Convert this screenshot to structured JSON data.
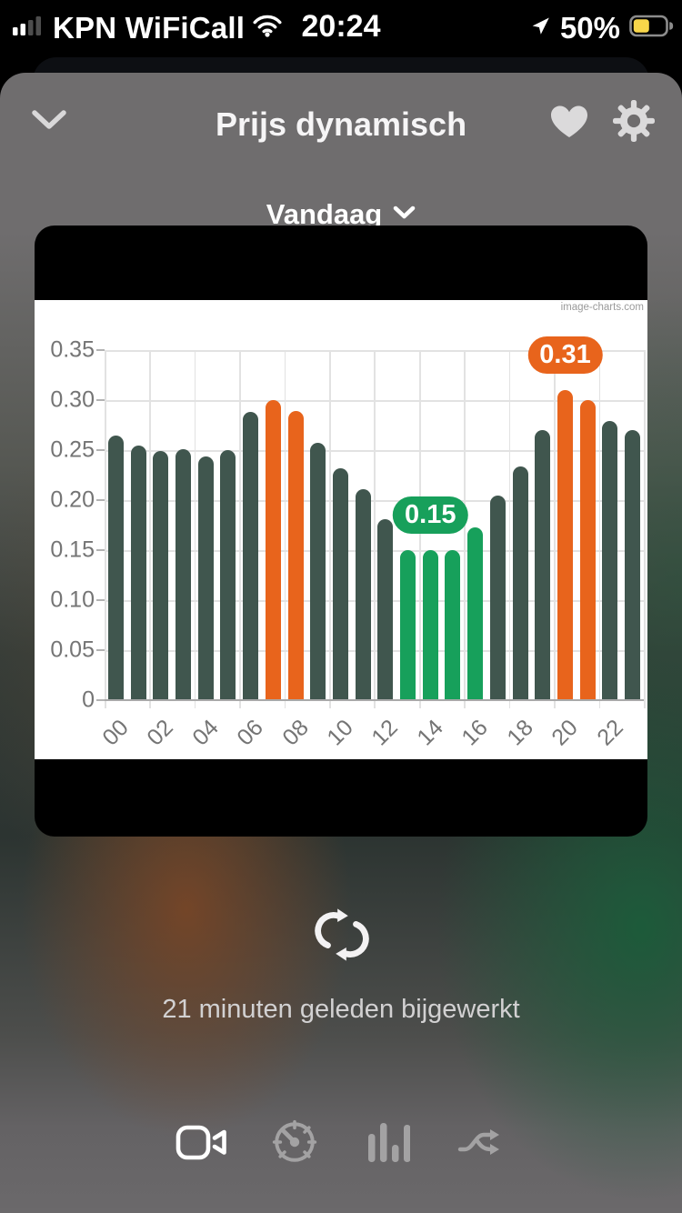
{
  "status_bar": {
    "carrier": "KPN WiFiCall",
    "time": "20:24",
    "battery_percent": "50%",
    "battery_color": "#f8d64a",
    "icons": [
      "cellular-signal-icon",
      "wifi-icon",
      "location-arrow-icon",
      "battery-icon"
    ]
  },
  "header": {
    "title": "Prijs dynamisch",
    "icons": [
      "chevron-down-icon",
      "heart-icon",
      "gear-icon"
    ]
  },
  "period_selector": {
    "label": "Vandaag",
    "icon": "chevron-down-icon"
  },
  "chart_card": {
    "watermark": "image-charts.com"
  },
  "chart_data": {
    "type": "bar",
    "title": "",
    "xlabel": "",
    "ylabel": "",
    "ylim": [
      0,
      0.35
    ],
    "grid": true,
    "categories": [
      "00",
      "01",
      "02",
      "03",
      "04",
      "05",
      "06",
      "07",
      "08",
      "09",
      "10",
      "11",
      "12",
      "13",
      "14",
      "15",
      "16",
      "17",
      "18",
      "19",
      "20",
      "21",
      "22",
      "23"
    ],
    "values": [
      0.265,
      0.255,
      0.249,
      0.251,
      0.244,
      0.25,
      0.288,
      0.3,
      0.289,
      0.257,
      0.232,
      0.211,
      0.181,
      0.15,
      0.15,
      0.15,
      0.173,
      0.205,
      0.234,
      0.27,
      0.31,
      0.3,
      0.279,
      0.27
    ],
    "bar_roles": [
      "normal",
      "normal",
      "normal",
      "normal",
      "normal",
      "normal",
      "normal",
      "high",
      "high",
      "normal",
      "normal",
      "normal",
      "normal",
      "low",
      "low",
      "low",
      "low",
      "normal",
      "normal",
      "normal",
      "high",
      "high",
      "normal",
      "normal"
    ],
    "bar_colors": {
      "normal": "#40564e",
      "high": "#e8641c",
      "low": "#17a05b"
    },
    "y_ticks": [
      "0.35",
      "0.30",
      "0.25",
      "0.20",
      "0.15",
      "0.10",
      "0.05",
      "0"
    ],
    "x_tick_labels": [
      "00",
      "02",
      "04",
      "06",
      "08",
      "10",
      "12",
      "14",
      "16",
      "18",
      "20",
      "22"
    ],
    "annotations": [
      {
        "label": "0.15",
        "bar_index": 14,
        "role": "low"
      },
      {
        "label": "0.31",
        "bar_index": 20,
        "role": "high"
      }
    ]
  },
  "status": {
    "updated_text": "21 minuten geleden bijgewerkt"
  },
  "tab_bar": {
    "items": [
      {
        "icon": "video-camera",
        "active": true
      },
      {
        "icon": "gauge",
        "active": false
      },
      {
        "icon": "bar-chart",
        "active": false
      },
      {
        "icon": "shuffle",
        "active": false
      }
    ]
  }
}
